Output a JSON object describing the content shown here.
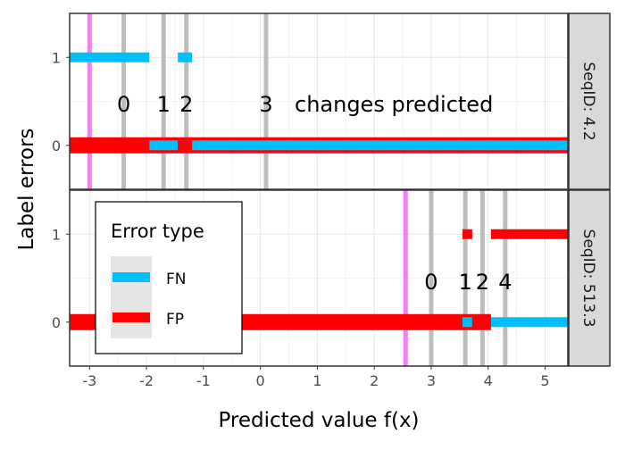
{
  "chart_data": {
    "type": "line",
    "xlabel": "Predicted value f(x)",
    "ylabel": "Label errors",
    "xlim": [
      -3.35,
      5.4
    ],
    "ylim": [
      -0.5,
      1.5
    ],
    "x_ticks": [
      -3,
      -2,
      -1,
      0,
      1,
      2,
      3,
      4,
      5
    ],
    "y_ticks": [
      0,
      1
    ],
    "grid": true,
    "legend": {
      "title": "Error type",
      "placement": "inside-bottom-left",
      "items": [
        {
          "label": "FN",
          "color": "#00BFFF"
        },
        {
          "label": "FP",
          "color": "#FF0000"
        }
      ]
    },
    "panels": [
      {
        "strip": "SeqID: 4.2",
        "change_lines": [
          -2.4,
          -1.7,
          -1.3,
          0.1
        ],
        "target_line": -3.0,
        "change_labels": [
          {
            "text": "0",
            "x": -2.4
          },
          {
            "text": "1",
            "x": -1.7
          },
          {
            "text": "2",
            "x": -1.3
          },
          {
            "text": "3",
            "x": 0.1
          }
        ],
        "annotation": "changes predicted",
        "segments": [
          {
            "type": "FN",
            "x0": -3.35,
            "x1": -1.95,
            "y": 1
          },
          {
            "type": "FN",
            "x0": -1.45,
            "x1": -1.2,
            "y": 1
          },
          {
            "type": "FP",
            "x0": -3.35,
            "x1": 5.4,
            "y": 0,
            "outline": true
          },
          {
            "type": "FP",
            "x0": -3.35,
            "x1": -1.95,
            "y": 0
          },
          {
            "type": "FN",
            "x0": -1.95,
            "x1": -1.45,
            "y": 0
          },
          {
            "type": "FP",
            "x0": -1.45,
            "x1": -1.2,
            "y": 0
          },
          {
            "type": "FN",
            "x0": -1.2,
            "x1": 5.4,
            "y": 0
          }
        ]
      },
      {
        "strip": "SeqID: 513.3",
        "change_lines": [
          3.0,
          3.6,
          3.9,
          4.3
        ],
        "target_line": 2.55,
        "change_labels": [
          {
            "text": "0",
            "x": 3.0
          },
          {
            "text": "1",
            "x": 3.6
          },
          {
            "text": "2",
            "x": 3.9
          },
          {
            "text": "4",
            "x": 4.3
          }
        ],
        "annotation": "",
        "segments": [
          {
            "type": "FP",
            "x0": 3.55,
            "x1": 3.72,
            "y": 1
          },
          {
            "type": "FP",
            "x0": 4.05,
            "x1": 5.4,
            "y": 1
          },
          {
            "type": "FP",
            "x0": -3.35,
            "x1": 4.05,
            "y": 0,
            "outline": true
          },
          {
            "type": "FP",
            "x0": -3.35,
            "x1": 3.55,
            "y": 0
          },
          {
            "type": "FN",
            "x0": 3.55,
            "x1": 3.72,
            "y": 0
          },
          {
            "type": "FP",
            "x0": 3.72,
            "x1": 4.05,
            "y": 0
          },
          {
            "type": "FN",
            "x0": 4.05,
            "x1": 5.4,
            "y": 0
          }
        ]
      }
    ]
  }
}
